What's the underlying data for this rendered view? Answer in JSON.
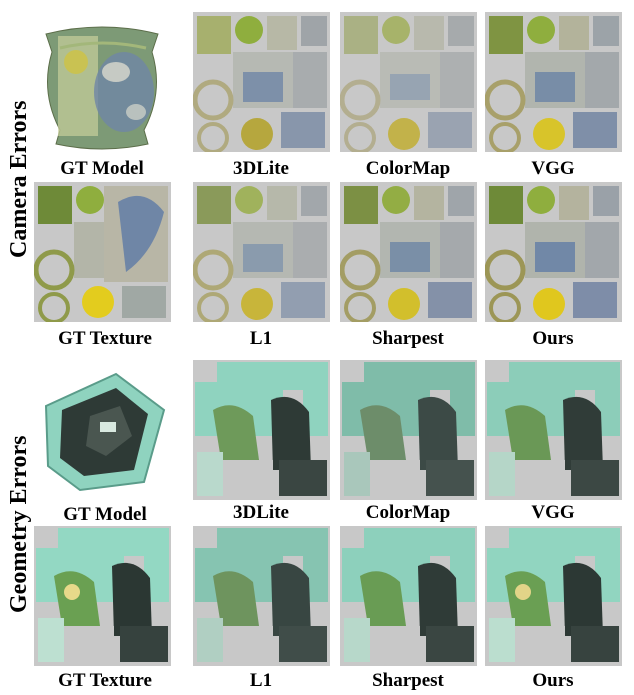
{
  "sections": [
    {
      "side_label": "Camera Errors",
      "rows": [
        [
          "GT Model",
          "3DLite",
          "ColorMap",
          "VGG"
        ],
        [
          "GT Texture",
          "L1",
          "Sharpest",
          "Ours"
        ]
      ]
    },
    {
      "side_label": "Geometry Errors",
      "rows": [
        [
          "GT Model",
          "3DLite",
          "ColorMap",
          "VGG"
        ],
        [
          "GT Texture",
          "L1",
          "Sharpest",
          "Ours"
        ]
      ]
    }
  ],
  "colors": {
    "atlas_background": "#c8c8c8",
    "butterfly_blue": "#6f86a6",
    "leaf_green": "#8fae3e",
    "yellow_fruit": "#d8c42a",
    "teal_texture": "#8fd3bf",
    "dark_figure": "#2e3a36"
  }
}
